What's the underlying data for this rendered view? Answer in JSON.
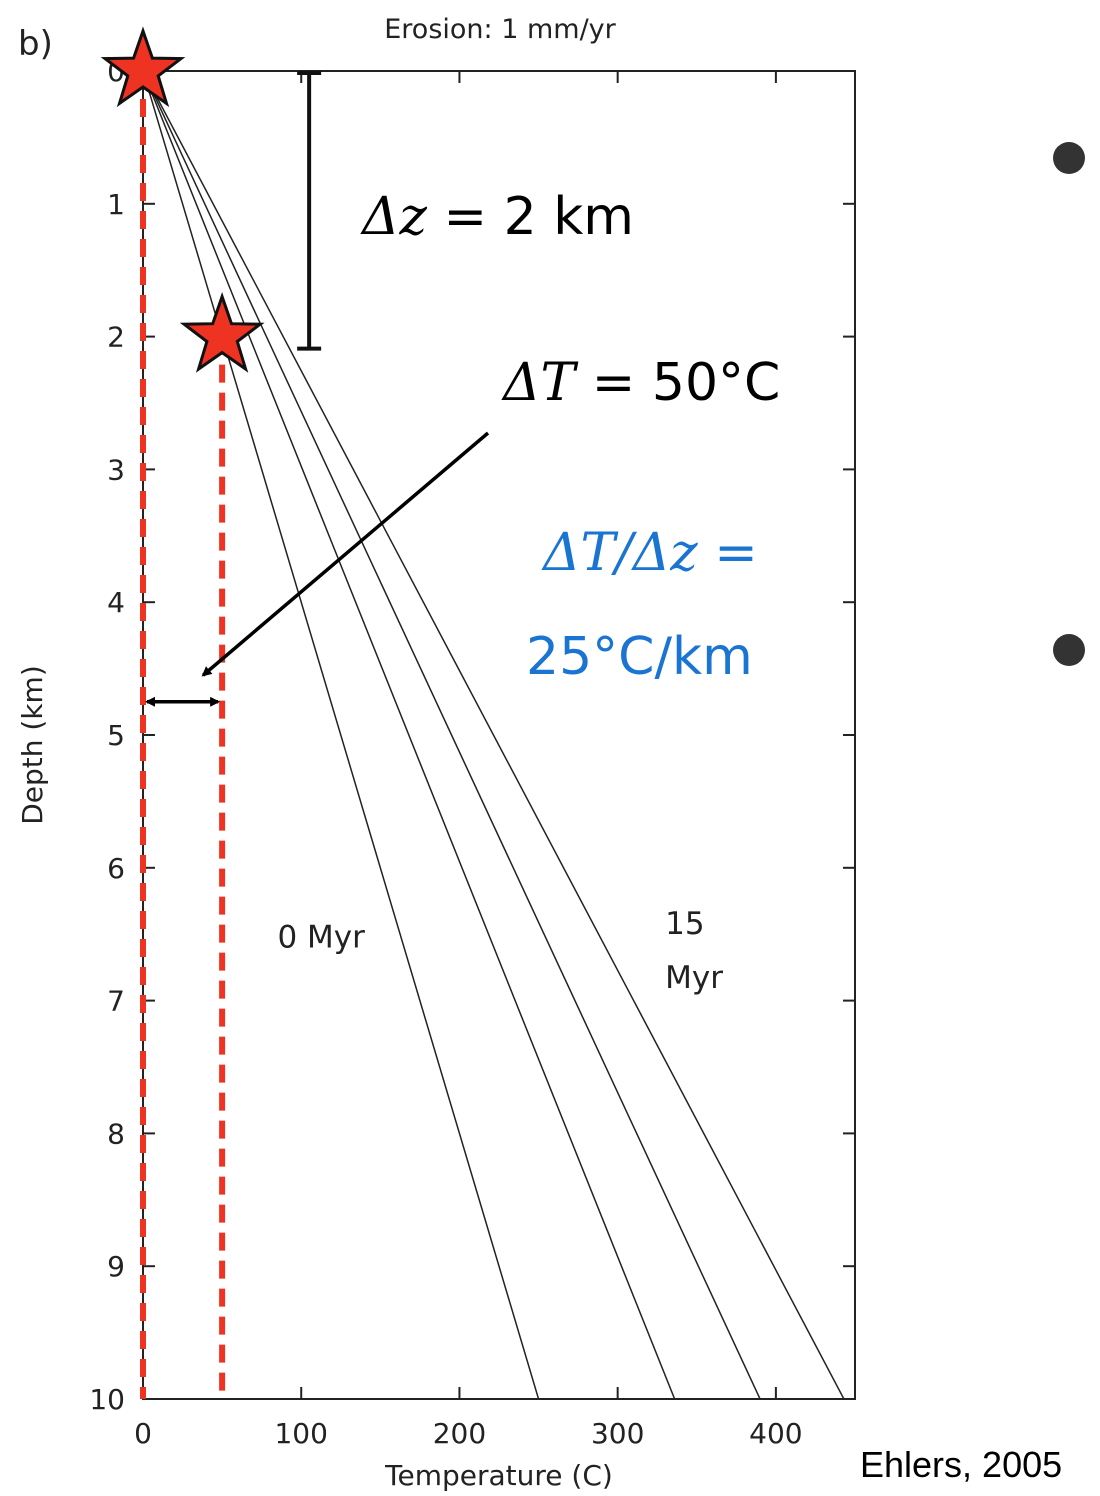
{
  "panel_label": "b)",
  "source": "Ehlers, 2005",
  "colors": {
    "marker": "#ee3322",
    "gradient_text": "#1a74d2",
    "curve": "#222222"
  },
  "annotations": {
    "delta_z": {
      "symbol": "Δz",
      "rest": " = 2 km"
    },
    "delta_t": {
      "symbol": "ΔT",
      "rest": " = 50°C"
    },
    "gradient": {
      "line1_symbol": "ΔT/Δz",
      "line1_rest": " =",
      "line2": "25°C/km"
    },
    "bullets": 2
  },
  "chart_data": {
    "type": "line",
    "title": "Erosion: 1 mm/yr",
    "xlabel": "Temperature (C)",
    "ylabel": "Depth (km)",
    "xlim": [
      0,
      450
    ],
    "ylim": [
      0,
      10
    ],
    "y_inverted": true,
    "x_ticks": [
      0,
      100,
      200,
      300,
      400
    ],
    "y_ticks": [
      0,
      1,
      2,
      3,
      4,
      5,
      6,
      7,
      8,
      9,
      10
    ],
    "series": [
      {
        "name": "0 Myr",
        "x": [
          0,
          250
        ],
        "y": [
          0,
          10
        ]
      },
      {
        "x": [
          0,
          336
        ],
        "y": [
          0,
          10
        ]
      },
      {
        "x": [
          0,
          390
        ],
        "y": [
          0,
          10
        ]
      },
      {
        "name": "15 Myr",
        "x": [
          0,
          443
        ],
        "y": [
          0,
          10
        ]
      }
    ],
    "curve_labels": [
      {
        "text": "0 Myr",
        "lines": [
          "0 Myr"
        ],
        "x": 85,
        "y": 6.6
      },
      {
        "text": "15 Myr",
        "lines": [
          "15",
          "Myr"
        ],
        "x": 330,
        "y": 6.5
      }
    ],
    "markers": [
      {
        "label": "surface sample",
        "x": 0,
        "y": 0
      },
      {
        "label": "sample at 2 km",
        "x": 50,
        "y": 2
      }
    ],
    "reference_lines": [
      {
        "orientation": "vertical",
        "x": 0,
        "style": "dashed"
      },
      {
        "orientation": "vertical",
        "x": 50,
        "style": "dashed"
      }
    ],
    "delta_z_bar": {
      "x": 105,
      "y_range": [
        0,
        2
      ]
    },
    "delta_t_arrow": {
      "y": 4.75,
      "x_range": [
        0,
        50
      ]
    },
    "grid": false
  }
}
